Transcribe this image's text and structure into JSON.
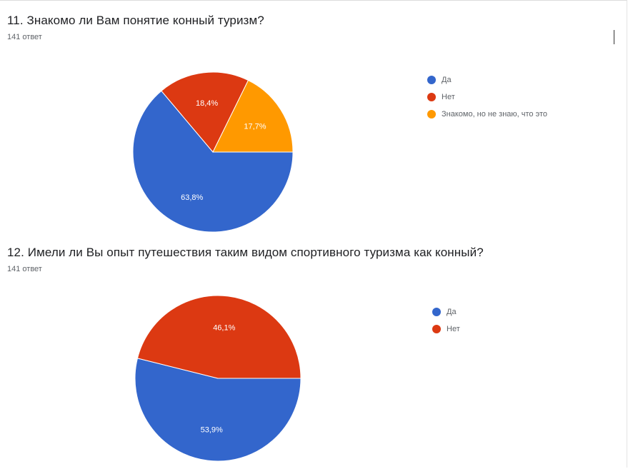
{
  "colors": {
    "blue": "#3366cc",
    "red": "#dc3912",
    "orange": "#ff9900"
  },
  "chart_data": [
    {
      "type": "pie",
      "title": "11. Знакомо ли Вам понятие конный туризм?",
      "subtitle": "141 ответ",
      "legend_position": "right",
      "slices": [
        {
          "label": "Да",
          "value": 63.8,
          "value_label": "63,8%",
          "color": "#3366cc"
        },
        {
          "label": "Нет",
          "value": 18.4,
          "value_label": "18,4%",
          "color": "#dc3912"
        },
        {
          "label": "Знакомо, но не знаю, что это",
          "value": 17.7,
          "value_label": "17,7%",
          "color": "#ff9900"
        }
      ]
    },
    {
      "type": "pie",
      "title": "12. Имели ли Вы опыт путешествия таким видом спортивного туризма как конный?",
      "subtitle": "141 ответ",
      "legend_position": "right",
      "slices": [
        {
          "label": "Да",
          "value": 53.9,
          "value_label": "53,9%",
          "color": "#3366cc"
        },
        {
          "label": "Нет",
          "value": 46.1,
          "value_label": "46,1%",
          "color": "#dc3912"
        }
      ]
    }
  ]
}
